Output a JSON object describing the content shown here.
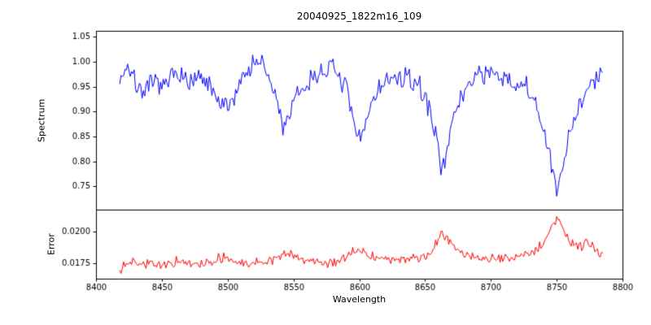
{
  "figure": {
    "background": "#ffffff",
    "grid": false,
    "legend": "none"
  },
  "chart_data": [
    {
      "type": "line",
      "title": "20040925_1822m16_109",
      "ylabel": "Spectrum",
      "color": "#0000ff",
      "xlim": [
        8400,
        8800
      ],
      "ylim": [
        0.703,
        1.062
      ],
      "yticks": [
        0.75,
        0.8,
        0.85,
        0.9,
        0.95,
        1.0,
        1.05
      ],
      "yticklabels": [
        "0.75",
        "0.80",
        "0.85",
        "0.90",
        "0.95",
        "1.00",
        "1.05"
      ],
      "step": 1,
      "noise_sigma": 0.011,
      "seed": 7,
      "anchors": [
        [
          8418,
          0.965
        ],
        [
          8424,
          0.995
        ],
        [
          8430,
          0.955
        ],
        [
          8438,
          0.94
        ],
        [
          8446,
          0.96
        ],
        [
          8452,
          0.945
        ],
        [
          8458,
          0.97
        ],
        [
          8464,
          0.985
        ],
        [
          8470,
          0.95
        ],
        [
          8476,
          0.965
        ],
        [
          8483,
          0.96
        ],
        [
          8490,
          0.93
        ],
        [
          8497,
          0.905
        ],
        [
          8503,
          0.92
        ],
        [
          8510,
          0.965
        ],
        [
          8517,
          0.99
        ],
        [
          8523,
          1.005
        ],
        [
          8530,
          0.975
        ],
        [
          8537,
          0.925
        ],
        [
          8542,
          0.87
        ],
        [
          8547,
          0.895
        ],
        [
          8553,
          0.93
        ],
        [
          8560,
          0.955
        ],
        [
          8568,
          0.975
        ],
        [
          8576,
          0.99
        ],
        [
          8584,
          0.975
        ],
        [
          8590,
          0.945
        ],
        [
          8596,
          0.87
        ],
        [
          8599,
          0.84
        ],
        [
          8603,
          0.86
        ],
        [
          8608,
          0.91
        ],
        [
          8614,
          0.945
        ],
        [
          8620,
          0.96
        ],
        [
          8628,
          0.965
        ],
        [
          8636,
          0.965
        ],
        [
          8644,
          0.955
        ],
        [
          8650,
          0.93
        ],
        [
          8656,
          0.88
        ],
        [
          8662,
          0.795
        ],
        [
          8666,
          0.82
        ],
        [
          8671,
          0.875
        ],
        [
          8677,
          0.925
        ],
        [
          8684,
          0.96
        ],
        [
          8691,
          0.98
        ],
        [
          8698,
          0.975
        ],
        [
          8706,
          0.965
        ],
        [
          8713,
          0.96
        ],
        [
          8720,
          0.955
        ],
        [
          8727,
          0.945
        ],
        [
          8734,
          0.915
        ],
        [
          8740,
          0.865
        ],
        [
          8746,
          0.79
        ],
        [
          8750,
          0.735
        ],
        [
          8754,
          0.775
        ],
        [
          8759,
          0.85
        ],
        [
          8764,
          0.895
        ],
        [
          8770,
          0.93
        ],
        [
          8776,
          0.955
        ],
        [
          8781,
          0.965
        ],
        [
          8785,
          0.975
        ]
      ]
    },
    {
      "type": "line",
      "ylabel": "Error",
      "xlabel": "Wavelength",
      "color": "#ff0000",
      "xlim": [
        8400,
        8800
      ],
      "ylim": [
        0.0163,
        0.0217
      ],
      "yticks": [
        0.0175,
        0.02
      ],
      "yticklabels": [
        "0.0175",
        "0.0200"
      ],
      "xticks": [
        8400,
        8450,
        8500,
        8550,
        8600,
        8650,
        8700,
        8750,
        8800
      ],
      "xticklabels": [
        "8400",
        "8450",
        "8500",
        "8550",
        "8600",
        "8650",
        "8700",
        "8750",
        "8800"
      ],
      "step": 1,
      "noise_sigma": 0.00018,
      "seed": 13,
      "anchors": [
        [
          8418,
          0.01715
        ],
        [
          8425,
          0.0176
        ],
        [
          8428,
          0.0179
        ],
        [
          8432,
          0.0176
        ],
        [
          8438,
          0.01745
        ],
        [
          8445,
          0.0174
        ],
        [
          8452,
          0.0174
        ],
        [
          8458,
          0.0175
        ],
        [
          8464,
          0.0176
        ],
        [
          8470,
          0.01745
        ],
        [
          8478,
          0.0174
        ],
        [
          8485,
          0.01755
        ],
        [
          8492,
          0.0178
        ],
        [
          8497,
          0.0179
        ],
        [
          8503,
          0.0177
        ],
        [
          8510,
          0.01755
        ],
        [
          8517,
          0.0175
        ],
        [
          8524,
          0.01755
        ],
        [
          8530,
          0.01765
        ],
        [
          8537,
          0.018
        ],
        [
          8543,
          0.0182
        ],
        [
          8549,
          0.0181
        ],
        [
          8555,
          0.0179
        ],
        [
          8562,
          0.0177
        ],
        [
          8570,
          0.01758
        ],
        [
          8578,
          0.01762
        ],
        [
          8586,
          0.01775
        ],
        [
          8593,
          0.0182
        ],
        [
          8599,
          0.0186
        ],
        [
          8605,
          0.0183
        ],
        [
          8612,
          0.01795
        ],
        [
          8620,
          0.0178
        ],
        [
          8628,
          0.01775
        ],
        [
          8636,
          0.01778
        ],
        [
          8644,
          0.01785
        ],
        [
          8650,
          0.018
        ],
        [
          8656,
          0.0186
        ],
        [
          8662,
          0.01985
        ],
        [
          8666,
          0.0194
        ],
        [
          8672,
          0.0188
        ],
        [
          8680,
          0.0182
        ],
        [
          8688,
          0.01795
        ],
        [
          8696,
          0.01785
        ],
        [
          8704,
          0.0179
        ],
        [
          8712,
          0.01795
        ],
        [
          8720,
          0.018
        ],
        [
          8728,
          0.01815
        ],
        [
          8735,
          0.0185
        ],
        [
          8742,
          0.0196
        ],
        [
          8748,
          0.0207
        ],
        [
          8751,
          0.021
        ],
        [
          8755,
          0.0201
        ],
        [
          8760,
          0.0193
        ],
        [
          8766,
          0.01885
        ],
        [
          8772,
          0.01905
        ],
        [
          8777,
          0.0189
        ],
        [
          8782,
          0.0183
        ],
        [
          8785,
          0.0181
        ]
      ]
    }
  ]
}
